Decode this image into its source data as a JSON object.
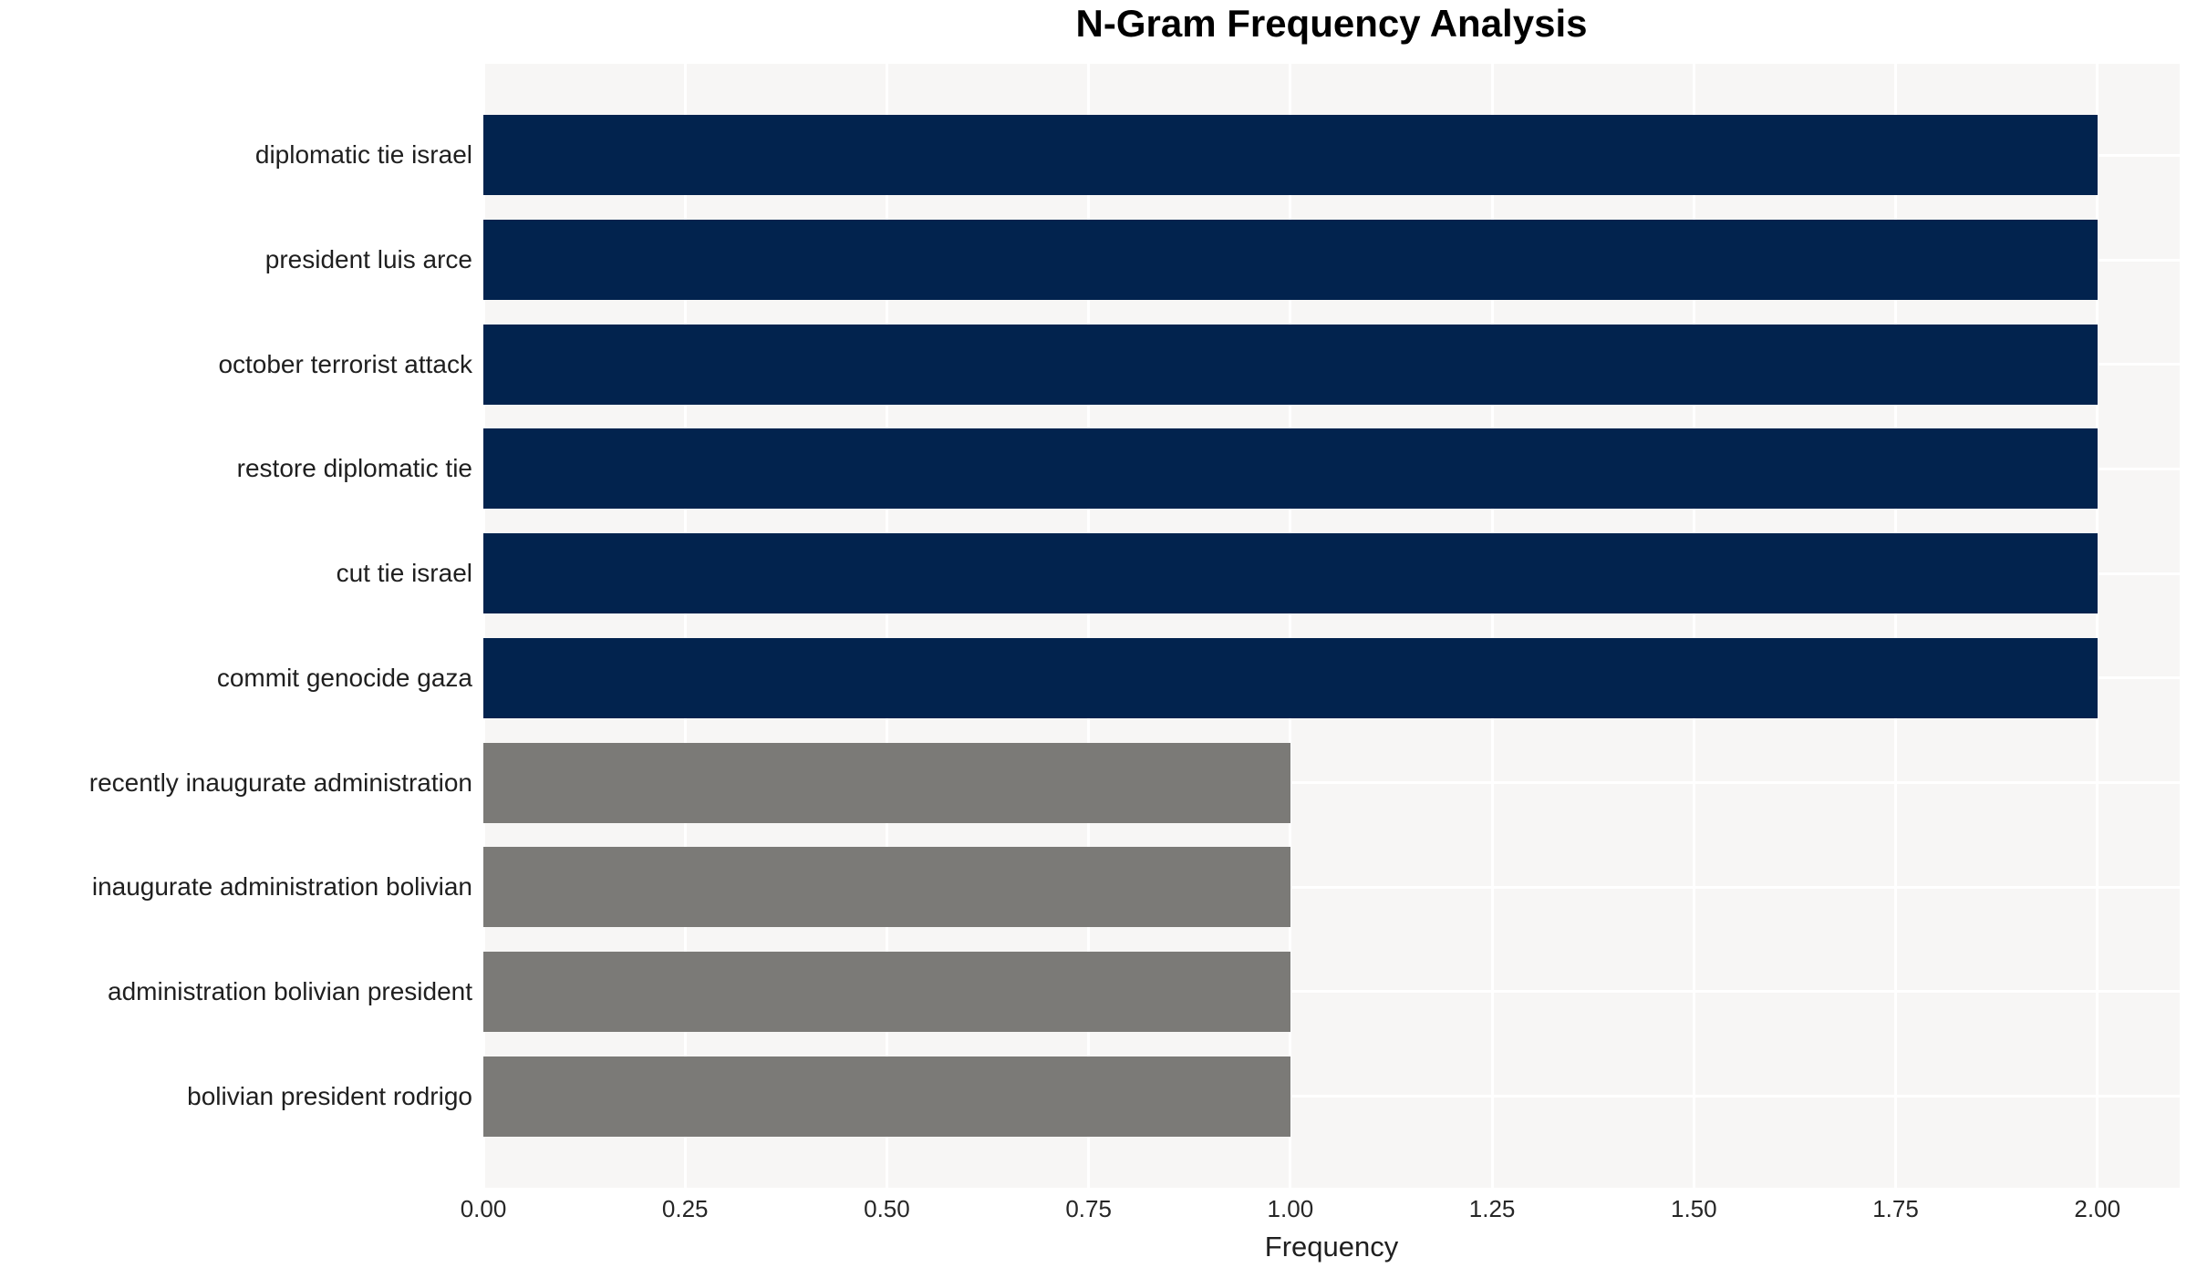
{
  "chart_data": {
    "type": "bar",
    "orientation": "horizontal",
    "title": "N-Gram Frequency Analysis",
    "xlabel": "Frequency",
    "categories": [
      "diplomatic tie israel",
      "president luis arce",
      "october terrorist attack",
      "restore diplomatic tie",
      "cut tie israel",
      "commit genocide gaza",
      "recently inaugurate administration",
      "inaugurate administration bolivian",
      "administration bolivian president",
      "bolivian president rodrigo"
    ],
    "values": [
      2,
      2,
      2,
      2,
      2,
      2,
      1,
      1,
      1,
      1
    ],
    "bar_colors": [
      "#02234e",
      "#02234e",
      "#02234e",
      "#02234e",
      "#02234e",
      "#02234e",
      "#7b7a77",
      "#7b7a77",
      "#7b7a77",
      "#7b7a77"
    ],
    "xlim": [
      0,
      2.102
    ],
    "xticks": [
      0,
      0.25,
      0.5,
      0.75,
      1.0,
      1.25,
      1.5,
      1.75,
      2.0
    ],
    "xtick_labels": [
      "0.00",
      "0.25",
      "0.50",
      "0.75",
      "1.00",
      "1.25",
      "1.50",
      "1.75",
      "2.00"
    ],
    "grid": true,
    "legend": false,
    "colors": {
      "bar_high": "#02234e",
      "bar_low": "#7b7a77",
      "plot_background": "#f7f6f5",
      "gridline": "#ffffff",
      "figure_background": "#ffffff",
      "title_text": "#000000",
      "label_text": "#1f1f1f"
    }
  }
}
